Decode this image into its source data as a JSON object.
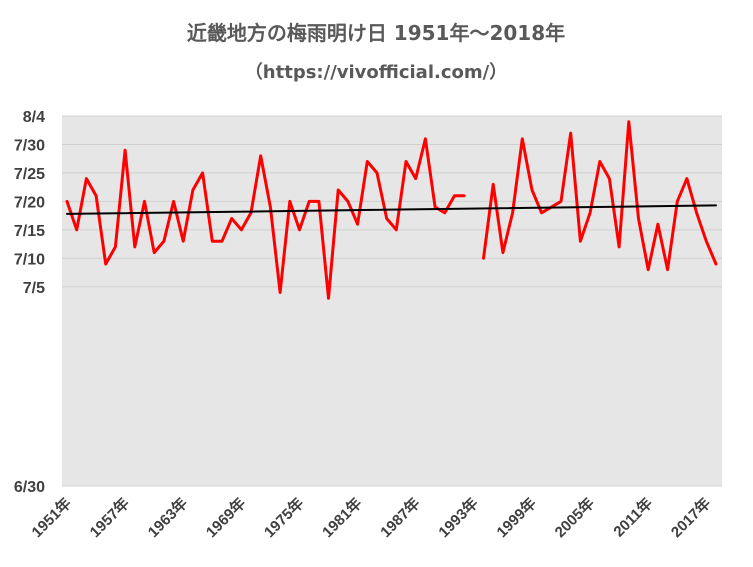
{
  "chart_data": {
    "type": "line",
    "title": "近畿地方の梅雨明け日 1951年～2018年",
    "subtitle": "（https://vivofficial.com/）",
    "xlabel": "",
    "ylabel": "",
    "x_start": 1951,
    "x_end": 2018,
    "x_tick_labels": [
      "1951年",
      "1957年",
      "1963年",
      "1969年",
      "1975年",
      "1981年",
      "1987年",
      "1993年",
      "1999年",
      "2005年",
      "2011年",
      "2017年"
    ],
    "y_tick_labels": [
      "6/30",
      "7/5",
      "7/10",
      "7/15",
      "7/20",
      "7/25",
      "7/30",
      "8/4"
    ],
    "ylim": [
      "6/30",
      "8/4"
    ],
    "grid": true,
    "legend": "none",
    "series": [
      {
        "color": "#ff0000",
        "x": [
          1951,
          1952,
          1953,
          1954,
          1955,
          1956,
          1957,
          1958,
          1959,
          1960,
          1961,
          1962,
          1963,
          1964,
          1965,
          1966,
          1967,
          1968,
          1969,
          1970,
          1971,
          1972,
          1973,
          1974,
          1975,
          1976,
          1977,
          1978,
          1979,
          1980,
          1981,
          1982,
          1983,
          1984,
          1985,
          1986,
          1987,
          1988,
          1989,
          1990,
          1991,
          1992,
          1993,
          1994,
          1995,
          1996,
          1997,
          1998,
          1999,
          2000,
          2001,
          2002,
          2003,
          2004,
          2005,
          2006,
          2007,
          2008,
          2009,
          2010,
          2011,
          2012,
          2013,
          2014,
          2015,
          2016,
          2017,
          2018
        ],
        "values": [
          "7/20",
          "7/15",
          "7/24",
          "7/21",
          "7/9",
          "7/12",
          "7/29",
          "7/12",
          "7/20",
          "7/11",
          "7/13",
          "7/20",
          "7/13",
          "7/22",
          "7/25",
          "7/13",
          "7/13",
          "7/17",
          "7/15",
          "7/18",
          "7/28",
          "7/19",
          "7/4",
          "7/20",
          "7/15",
          "7/20",
          "7/20",
          "7/3",
          "7/22",
          "7/20",
          "7/16",
          "7/27",
          "7/25",
          "7/17",
          "7/15",
          "7/27",
          "7/24",
          "7/31",
          "7/19",
          "7/18",
          "7/21",
          "7/21",
          null,
          "7/10",
          "7/23",
          "7/11",
          "7/18",
          "7/31",
          "7/22",
          "7/18",
          "7/19",
          "7/20",
          "8/1",
          "7/13",
          "7/18",
          "7/27",
          "7/24",
          "7/12",
          "8/3",
          "7/17",
          "7/8",
          "7/16",
          "7/8",
          "7/20",
          "7/24",
          "7/18",
          "7/13",
          "7/9"
        ]
      },
      {
        "color": "#000000",
        "trendline": true,
        "x": [
          1951,
          2018
        ],
        "values": [
          "7/17.8",
          "7/19.3"
        ]
      }
    ]
  }
}
